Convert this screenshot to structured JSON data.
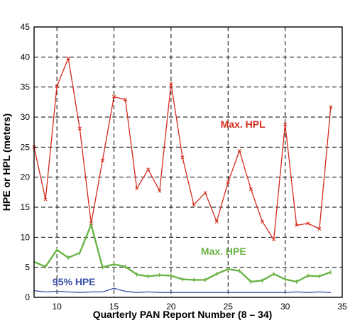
{
  "chart_data": {
    "type": "line",
    "xlabel": "Quarterly PAN Report Number (8 – 34)",
    "ylabel": "HPE or HPL (meters)",
    "xlim": [
      8,
      35
    ],
    "ylim": [
      0,
      45
    ],
    "xticks": [
      10,
      15,
      20,
      25,
      30,
      35
    ],
    "yticks": [
      0,
      5,
      10,
      15,
      20,
      25,
      30,
      35,
      40,
      45
    ],
    "grid": true,
    "x": [
      8,
      9,
      10,
      11,
      12,
      13,
      14,
      15,
      16,
      17,
      18,
      19,
      20,
      21,
      22,
      23,
      24,
      25,
      26,
      27,
      28,
      29,
      30,
      31,
      32,
      33,
      34
    ],
    "series": [
      {
        "name": "Max. HPL",
        "color": "#d42a1c",
        "values": [
          25,
          16.3,
          35.1,
          39.8,
          28.1,
          12.3,
          22.8,
          33.4,
          32.9,
          18.1,
          21.3,
          17.7,
          35.6,
          23.3,
          15.4,
          17.4,
          12.6,
          19.2,
          24.4,
          18,
          12.6,
          9.6,
          28.8,
          12,
          12.3,
          11.4,
          31.7
        ]
      },
      {
        "name": "Max. HPE",
        "color": "#6ab446",
        "values": [
          5.9,
          5.1,
          7.9,
          6.6,
          7.4,
          12.1,
          5,
          5.5,
          5.1,
          3.8,
          3.5,
          3.7,
          3.6,
          3,
          2.9,
          2.9,
          3.9,
          4.7,
          4.4,
          2.6,
          2.8,
          3.9,
          3,
          2.6,
          3.6,
          3.5,
          4.2
        ]
      },
      {
        "name": "95% HPE",
        "color": "#3a4fa8",
        "values": [
          1.1,
          0.9,
          1.0,
          0.9,
          0.8,
          0.9,
          0.9,
          1.5,
          1.0,
          0.8,
          0.9,
          0.8,
          0.8,
          0.8,
          0.8,
          0.8,
          0.8,
          0.8,
          0.8,
          0.8,
          0.8,
          0.8,
          0.8,
          0.9,
          0.8,
          0.9,
          0.8
        ]
      }
    ]
  }
}
